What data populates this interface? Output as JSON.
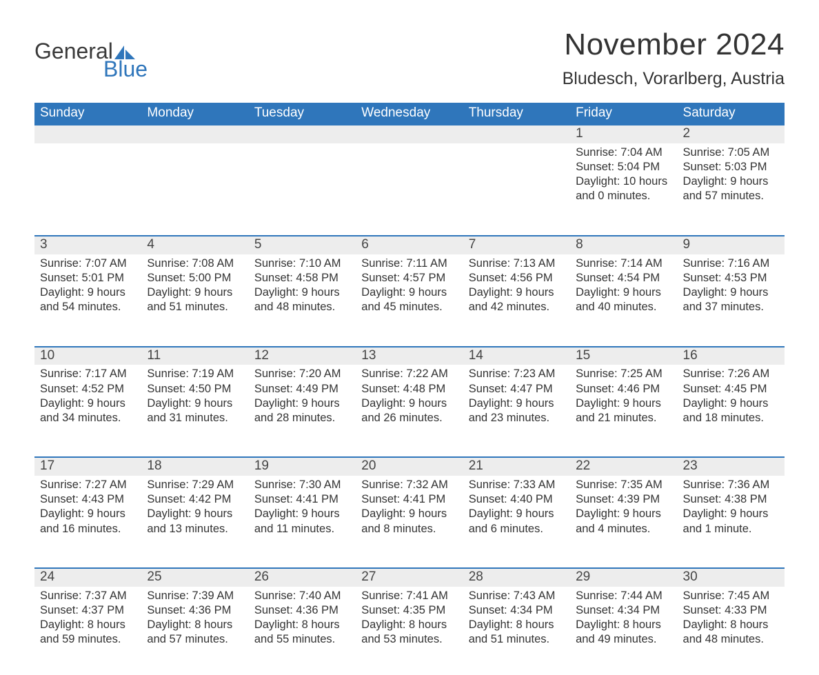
{
  "logo": {
    "word1": "General",
    "word2": "Blue",
    "accent_color": "#2f76bb",
    "text_color": "#3a3a3a"
  },
  "title": "November 2024",
  "location": "Bludesch, Vorarlberg, Austria",
  "colors": {
    "header_bg": "#2f76bb",
    "header_text": "#ffffff",
    "row_border": "#2f76bb",
    "daynum_bg": "#ededed",
    "body_text": "#333333",
    "page_bg": "#ffffff"
  },
  "fonts": {
    "title_pt": 44,
    "location_pt": 25,
    "header_pt": 19,
    "daynum_pt": 19,
    "body_pt": 16.5
  },
  "day_headers": [
    "Sunday",
    "Monday",
    "Tuesday",
    "Wednesday",
    "Thursday",
    "Friday",
    "Saturday"
  ],
  "labels": {
    "sunrise": "Sunrise: ",
    "sunset": "Sunset: ",
    "daylight": "Daylight: "
  },
  "weeks": [
    [
      null,
      null,
      null,
      null,
      null,
      {
        "n": "1",
        "sunrise": "7:04 AM",
        "sunset": "5:04 PM",
        "daylight": "10 hours and 0 minutes."
      },
      {
        "n": "2",
        "sunrise": "7:05 AM",
        "sunset": "5:03 PM",
        "daylight": "9 hours and 57 minutes."
      }
    ],
    [
      {
        "n": "3",
        "sunrise": "7:07 AM",
        "sunset": "5:01 PM",
        "daylight": "9 hours and 54 minutes."
      },
      {
        "n": "4",
        "sunrise": "7:08 AM",
        "sunset": "5:00 PM",
        "daylight": "9 hours and 51 minutes."
      },
      {
        "n": "5",
        "sunrise": "7:10 AM",
        "sunset": "4:58 PM",
        "daylight": "9 hours and 48 minutes."
      },
      {
        "n": "6",
        "sunrise": "7:11 AM",
        "sunset": "4:57 PM",
        "daylight": "9 hours and 45 minutes."
      },
      {
        "n": "7",
        "sunrise": "7:13 AM",
        "sunset": "4:56 PM",
        "daylight": "9 hours and 42 minutes."
      },
      {
        "n": "8",
        "sunrise": "7:14 AM",
        "sunset": "4:54 PM",
        "daylight": "9 hours and 40 minutes."
      },
      {
        "n": "9",
        "sunrise": "7:16 AM",
        "sunset": "4:53 PM",
        "daylight": "9 hours and 37 minutes."
      }
    ],
    [
      {
        "n": "10",
        "sunrise": "7:17 AM",
        "sunset": "4:52 PM",
        "daylight": "9 hours and 34 minutes."
      },
      {
        "n": "11",
        "sunrise": "7:19 AM",
        "sunset": "4:50 PM",
        "daylight": "9 hours and 31 minutes."
      },
      {
        "n": "12",
        "sunrise": "7:20 AM",
        "sunset": "4:49 PM",
        "daylight": "9 hours and 28 minutes."
      },
      {
        "n": "13",
        "sunrise": "7:22 AM",
        "sunset": "4:48 PM",
        "daylight": "9 hours and 26 minutes."
      },
      {
        "n": "14",
        "sunrise": "7:23 AM",
        "sunset": "4:47 PM",
        "daylight": "9 hours and 23 minutes."
      },
      {
        "n": "15",
        "sunrise": "7:25 AM",
        "sunset": "4:46 PM",
        "daylight": "9 hours and 21 minutes."
      },
      {
        "n": "16",
        "sunrise": "7:26 AM",
        "sunset": "4:45 PM",
        "daylight": "9 hours and 18 minutes."
      }
    ],
    [
      {
        "n": "17",
        "sunrise": "7:27 AM",
        "sunset": "4:43 PM",
        "daylight": "9 hours and 16 minutes."
      },
      {
        "n": "18",
        "sunrise": "7:29 AM",
        "sunset": "4:42 PM",
        "daylight": "9 hours and 13 minutes."
      },
      {
        "n": "19",
        "sunrise": "7:30 AM",
        "sunset": "4:41 PM",
        "daylight": "9 hours and 11 minutes."
      },
      {
        "n": "20",
        "sunrise": "7:32 AM",
        "sunset": "4:41 PM",
        "daylight": "9 hours and 8 minutes."
      },
      {
        "n": "21",
        "sunrise": "7:33 AM",
        "sunset": "4:40 PM",
        "daylight": "9 hours and 6 minutes."
      },
      {
        "n": "22",
        "sunrise": "7:35 AM",
        "sunset": "4:39 PM",
        "daylight": "9 hours and 4 minutes."
      },
      {
        "n": "23",
        "sunrise": "7:36 AM",
        "sunset": "4:38 PM",
        "daylight": "9 hours and 1 minute."
      }
    ],
    [
      {
        "n": "24",
        "sunrise": "7:37 AM",
        "sunset": "4:37 PM",
        "daylight": "8 hours and 59 minutes."
      },
      {
        "n": "25",
        "sunrise": "7:39 AM",
        "sunset": "4:36 PM",
        "daylight": "8 hours and 57 minutes."
      },
      {
        "n": "26",
        "sunrise": "7:40 AM",
        "sunset": "4:36 PM",
        "daylight": "8 hours and 55 minutes."
      },
      {
        "n": "27",
        "sunrise": "7:41 AM",
        "sunset": "4:35 PM",
        "daylight": "8 hours and 53 minutes."
      },
      {
        "n": "28",
        "sunrise": "7:43 AM",
        "sunset": "4:34 PM",
        "daylight": "8 hours and 51 minutes."
      },
      {
        "n": "29",
        "sunrise": "7:44 AM",
        "sunset": "4:34 PM",
        "daylight": "8 hours and 49 minutes."
      },
      {
        "n": "30",
        "sunrise": "7:45 AM",
        "sunset": "4:33 PM",
        "daylight": "8 hours and 48 minutes."
      }
    ]
  ]
}
